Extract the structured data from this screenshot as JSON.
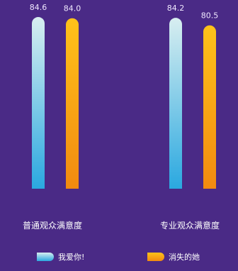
{
  "chart_data": {
    "type": "bar",
    "categories": [
      "普通观众满意度",
      "专业观众满意度"
    ],
    "series": [
      {
        "name": "我爱你!",
        "values": [
          84.6,
          84.2
        ],
        "color_top": "#d8eef0",
        "color_bottom": "#2aa8e0"
      },
      {
        "name": "消失的她",
        "values": [
          84.0,
          80.5
        ],
        "color_top": "#ffc21a",
        "color_bottom": "#f28a10"
      }
    ],
    "value_labels": [
      [
        "84.6",
        "84.2"
      ],
      [
        "84.0",
        "80.5"
      ]
    ],
    "title": "",
    "xlabel": "",
    "ylabel": "",
    "ylim": [
      0,
      86
    ],
    "grid": false,
    "legend": "bottom",
    "colors": {
      "background": "#4a2a86",
      "text": "#ffffff",
      "value_text": "#f0e8ff"
    }
  }
}
